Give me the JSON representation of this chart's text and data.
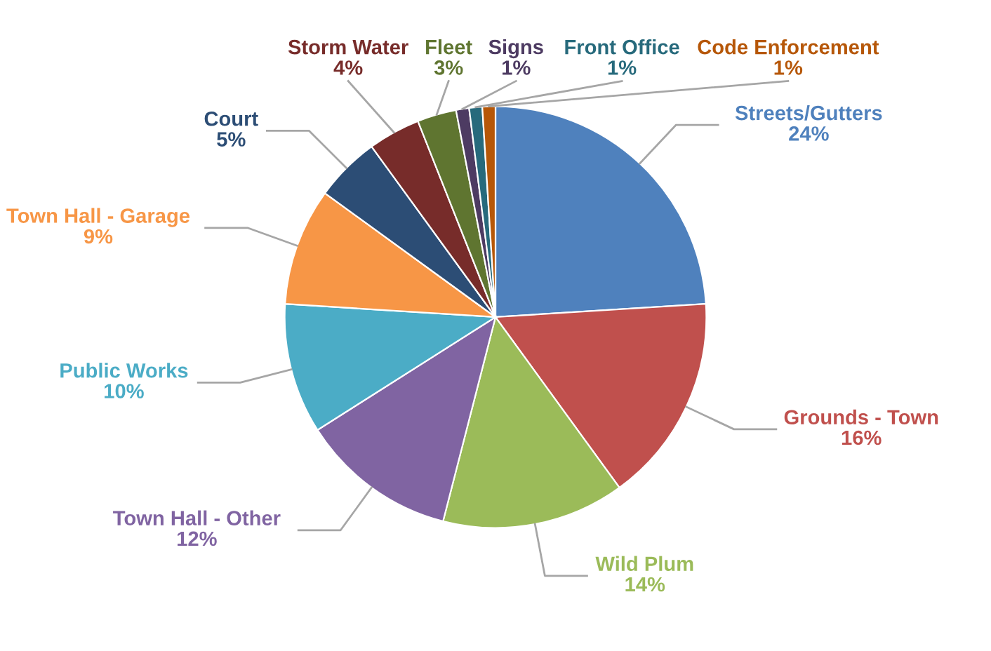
{
  "chart_data": {
    "type": "pie",
    "categories": [
      "Streets/Gutters",
      "Grounds - Town",
      "Wild Plum",
      "Town Hall - Other",
      "Public Works",
      "Town Hall - Garage",
      "Court",
      "Storm Water",
      "Fleet",
      "Signs",
      "Front Office",
      "Code Enforcement"
    ],
    "values": [
      24,
      16,
      14,
      12,
      10,
      9,
      5,
      4,
      3,
      1,
      1,
      1
    ],
    "colors": [
      "#4f81bd",
      "#c0504d",
      "#9bbb59",
      "#8064a2",
      "#4bacc6",
      "#f79646",
      "#2c4d75",
      "#772c2a",
      "#5f7530",
      "#4d3b62",
      "#276a7c",
      "#b65708"
    ],
    "value_labels": [
      "24%",
      "16%",
      "14%",
      "12%",
      "10%",
      "9%",
      "5%",
      "4%",
      "3%",
      "1%",
      "1%",
      "1%"
    ]
  }
}
